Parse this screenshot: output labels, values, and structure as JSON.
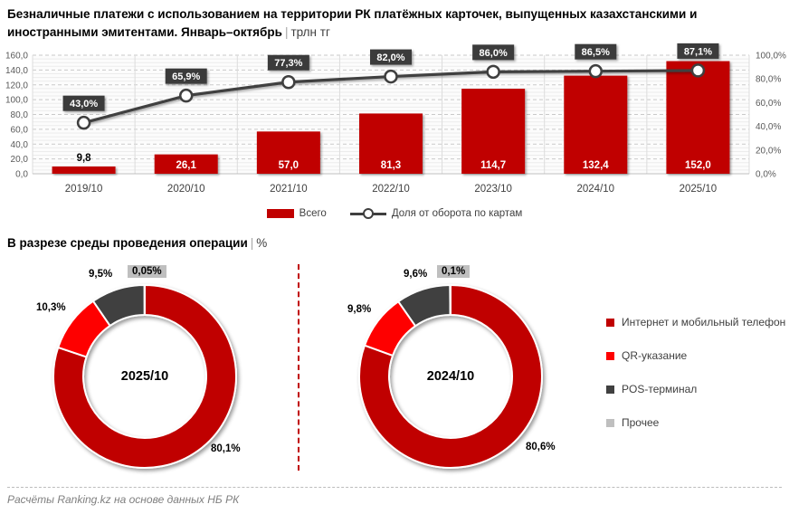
{
  "header": {
    "title": "Безналичные платежи с использованием на территории РК платёжных карточек, выпущенных казахстанскими и иностранными эмитентами. Январь–октябрь",
    "separator": "|",
    "unit": "трлн тг"
  },
  "chart_data": [
    {
      "type": "bar",
      "subtype": "combo-bar-line",
      "categories": [
        "2019/10",
        "2020/10",
        "2021/10",
        "2022/10",
        "2023/10",
        "2024/10",
        "2025/10"
      ],
      "series": [
        {
          "name": "Всего",
          "type": "bar",
          "axis": "left",
          "color": "#C00000",
          "values": [
            9.8,
            26.1,
            57.0,
            81.3,
            114.7,
            132.4,
            152.0
          ],
          "labels": [
            "9,8",
            "26,1",
            "57,0",
            "81,3",
            "114,7",
            "132,4",
            "152,0"
          ]
        },
        {
          "name": "Доля от оборота по картам",
          "type": "line",
          "axis": "right",
          "color": "#3F3F3F",
          "marker": "white-circle",
          "values": [
            43.0,
            65.9,
            77.3,
            82.0,
            86.0,
            86.5,
            87.1
          ],
          "labels": [
            "43,0%",
            "65,9%",
            "77,3%",
            "82,0%",
            "86,0%",
            "86,5%",
            "87,1%"
          ]
        }
      ],
      "left_axis": {
        "min": 0,
        "max": 160,
        "step": 20,
        "tick_labels": [
          "0,0",
          "20,0",
          "40,0",
          "60,0",
          "80,0",
          "100,0",
          "120,0",
          "140,0",
          "160,0"
        ]
      },
      "right_axis": {
        "min": 0,
        "max": 100,
        "step": 20,
        "tick_labels": [
          "0,0%",
          "20,0%",
          "40,0%",
          "60,0%",
          "80,0%",
          "100,0%"
        ]
      },
      "grid": true,
      "legend_position": "bottom"
    },
    {
      "type": "pie",
      "subtype": "donut",
      "center_label": "2025/10",
      "slices": [
        {
          "label": "Интернет и мобильный телефон",
          "value": 80.1,
          "display": "80,1%",
          "color": "#C00000"
        },
        {
          "label": "QR-указание",
          "value": 10.3,
          "display": "10,3%",
          "color": "#FE0000"
        },
        {
          "label": "POS-терминал",
          "value": 9.5,
          "display": "9,5%",
          "color": "#404040"
        },
        {
          "label": "Прочее",
          "value": 0.05,
          "display": "0,05%",
          "color": "#BFBFBF"
        }
      ]
    },
    {
      "type": "pie",
      "subtype": "donut",
      "center_label": "2024/10",
      "slices": [
        {
          "label": "Интернет и мобильный телефон",
          "value": 80.6,
          "display": "80,6%",
          "color": "#C00000"
        },
        {
          "label": "QR-указание",
          "value": 9.8,
          "display": "9,8%",
          "color": "#FE0000"
        },
        {
          "label": "POS-терминал",
          "value": 9.6,
          "display": "9,6%",
          "color": "#404040"
        },
        {
          "label": "Прочее",
          "value": 0.1,
          "display": "0,1%",
          "color": "#BFBFBF"
        }
      ]
    }
  ],
  "section2": {
    "title": "В разрезе среды проведения операции",
    "separator": "|",
    "unit": "%"
  },
  "legend2": {
    "items": [
      {
        "label": "Интернет и мобильный телефон",
        "color": "#C00000"
      },
      {
        "label": "QR-указание",
        "color": "#FE0000"
      },
      {
        "label": "POS-терминал",
        "color": "#404040"
      },
      {
        "label": "Прочее",
        "color": "#BFBFBF"
      }
    ]
  },
  "footer": {
    "text": "Расчёты Ranking.kz на основе данных НБ РК"
  }
}
